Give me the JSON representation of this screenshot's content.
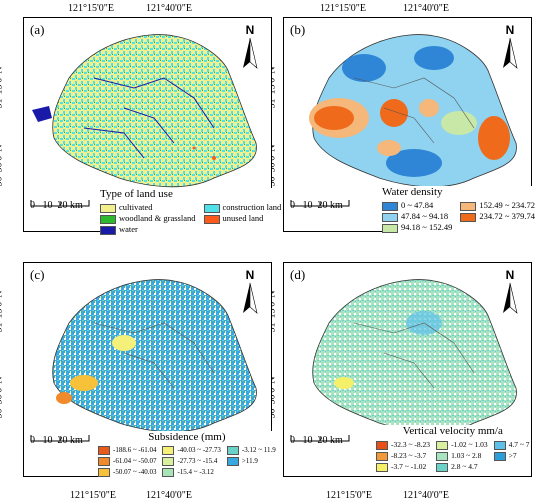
{
  "ticks": {
    "lon1": "121°15'0\"E",
    "lon2": "121°40'0\"E",
    "lat1": "31°15'0\"N",
    "lat2": "30°50'0\"N"
  },
  "north": "N",
  "scale": [
    "0",
    "10",
    "20 km"
  ],
  "panels": {
    "a": {
      "label": "(a)",
      "legend_title": "Type of land use",
      "items": [
        {
          "label": "cultivated",
          "color": "#f2f08c"
        },
        {
          "label": "construction land",
          "color": "#4fe0e8"
        },
        {
          "label": "woodland & grassland",
          "color": "#2eb82e"
        },
        {
          "label": "unused land",
          "color": "#ff5a1e"
        },
        {
          "label": "water",
          "color": "#1a1aa8"
        }
      ]
    },
    "b": {
      "label": "(b)",
      "legend_title": "Water density",
      "items": [
        {
          "label": "0 ~ 47.84",
          "color": "#2f86d6"
        },
        {
          "label": "152.49 ~ 234.72",
          "color": "#f5b77a"
        },
        {
          "label": "47.84 ~ 94.18",
          "color": "#8fd3f0"
        },
        {
          "label": "234.72 ~ 379.74",
          "color": "#ef6a1a"
        },
        {
          "label": "94.18 ~ 152.49",
          "color": "#c8e8a8"
        }
      ]
    },
    "c": {
      "label": "(c)",
      "legend_title": "Subsidence (mm)",
      "items": [
        {
          "label": "-188.6 ~ -61.04",
          "color": "#e85a1a"
        },
        {
          "label": "-40.03 ~ -27.73",
          "color": "#f5f07a"
        },
        {
          "label": "-3.12 ~ 11.9",
          "color": "#6ad2c8"
        },
        {
          "label": "-61.04 ~ -50.07",
          "color": "#f08a2a"
        },
        {
          "label": "-27.73 ~ -15.4",
          "color": "#d8f0a0"
        },
        {
          "label": ">11.9",
          "color": "#3aa8e0"
        },
        {
          "label": "-50.07 ~ -40.03",
          "color": "#f7c23a"
        },
        {
          "label": "-15.4 ~ -3.12",
          "color": "#a8e4b8"
        }
      ]
    },
    "d": {
      "label": "(d)",
      "legend_title": "Vertical velocity mm/a",
      "items": [
        {
          "label": "-32.3 ~ -8.23",
          "color": "#e8501a"
        },
        {
          "label": "-1.02 ~ 1.03",
          "color": "#d8f0a0"
        },
        {
          "label": "4.7 ~ 7",
          "color": "#5ec0e8"
        },
        {
          "label": "-8.23 ~ -3.7",
          "color": "#f29a3a"
        },
        {
          "label": "1.03 ~ 2.8",
          "color": "#a8e4c0"
        },
        {
          "label": ">7",
          "color": "#2e9ed8"
        },
        {
          "label": "-3.7 ~ -1.02",
          "color": "#f5f06a"
        },
        {
          "label": "2.8 ~ 4.7",
          "color": "#6ad2c8"
        }
      ]
    }
  }
}
